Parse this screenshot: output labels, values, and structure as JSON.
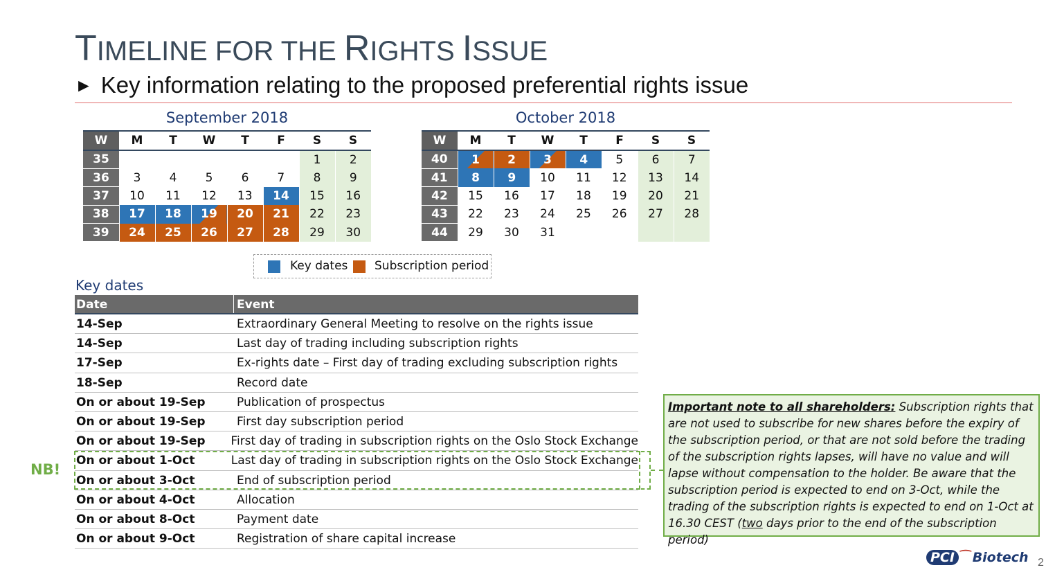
{
  "slide": {
    "title_first_letter_1": "T",
    "title_rest_1": "IMELINE FOR THE ",
    "title_first_letter_2": "R",
    "title_rest_2": "IGHTS ",
    "title_first_letter_3": "I",
    "title_rest_3": "SSUE",
    "subtitle_arrow": "►",
    "subtitle": "Key information relating to the proposed preferential rights issue",
    "page_number": "2"
  },
  "calendars": {
    "headers": [
      "W",
      "M",
      "T",
      "W",
      "T",
      "F",
      "S",
      "S"
    ],
    "september": {
      "title": "September 2018",
      "weeks": [
        {
          "w": "35",
          "days": [
            {
              "d": "",
              "t": ""
            },
            {
              "d": "",
              "t": ""
            },
            {
              "d": "",
              "t": ""
            },
            {
              "d": "",
              "t": ""
            },
            {
              "d": "",
              "t": ""
            },
            {
              "d": "1",
              "t": "we"
            },
            {
              "d": "2",
              "t": "we"
            }
          ]
        },
        {
          "w": "36",
          "days": [
            {
              "d": "3",
              "t": ""
            },
            {
              "d": "4",
              "t": ""
            },
            {
              "d": "5",
              "t": ""
            },
            {
              "d": "6",
              "t": ""
            },
            {
              "d": "7",
              "t": ""
            },
            {
              "d": "8",
              "t": "we"
            },
            {
              "d": "9",
              "t": "we"
            }
          ]
        },
        {
          "w": "37",
          "days": [
            {
              "d": "10",
              "t": ""
            },
            {
              "d": "11",
              "t": ""
            },
            {
              "d": "12",
              "t": ""
            },
            {
              "d": "13",
              "t": ""
            },
            {
              "d": "14",
              "t": "key"
            },
            {
              "d": "15",
              "t": "we"
            },
            {
              "d": "16",
              "t": "we"
            }
          ]
        },
        {
          "w": "38",
          "days": [
            {
              "d": "17",
              "t": "key"
            },
            {
              "d": "18",
              "t": "key"
            },
            {
              "d": "19",
              "t": "mix"
            },
            {
              "d": "20",
              "t": "sub"
            },
            {
              "d": "21",
              "t": "sub"
            },
            {
              "d": "22",
              "t": "we"
            },
            {
              "d": "23",
              "t": "we"
            }
          ]
        },
        {
          "w": "39",
          "days": [
            {
              "d": "24",
              "t": "sub"
            },
            {
              "d": "25",
              "t": "sub"
            },
            {
              "d": "26",
              "t": "sub"
            },
            {
              "d": "27",
              "t": "sub"
            },
            {
              "d": "28",
              "t": "sub"
            },
            {
              "d": "29",
              "t": "we"
            },
            {
              "d": "30",
              "t": "we"
            }
          ]
        }
      ]
    },
    "october": {
      "title": "October 2018",
      "weeks": [
        {
          "w": "40",
          "days": [
            {
              "d": "1",
              "t": "mix"
            },
            {
              "d": "2",
              "t": "sub"
            },
            {
              "d": "3",
              "t": "mix"
            },
            {
              "d": "4",
              "t": "key"
            },
            {
              "d": "5",
              "t": ""
            },
            {
              "d": "6",
              "t": "we"
            },
            {
              "d": "7",
              "t": "we"
            }
          ]
        },
        {
          "w": "41",
          "days": [
            {
              "d": "8",
              "t": "key"
            },
            {
              "d": "9",
              "t": "key"
            },
            {
              "d": "10",
              "t": ""
            },
            {
              "d": "11",
              "t": ""
            },
            {
              "d": "12",
              "t": ""
            },
            {
              "d": "13",
              "t": "we"
            },
            {
              "d": "14",
              "t": "we"
            }
          ]
        },
        {
          "w": "42",
          "days": [
            {
              "d": "15",
              "t": ""
            },
            {
              "d": "16",
              "t": ""
            },
            {
              "d": "17",
              "t": ""
            },
            {
              "d": "18",
              "t": ""
            },
            {
              "d": "19",
              "t": ""
            },
            {
              "d": "20",
              "t": "we"
            },
            {
              "d": "21",
              "t": "we"
            }
          ]
        },
        {
          "w": "43",
          "days": [
            {
              "d": "22",
              "t": ""
            },
            {
              "d": "23",
              "t": ""
            },
            {
              "d": "24",
              "t": ""
            },
            {
              "d": "25",
              "t": ""
            },
            {
              "d": "26",
              "t": ""
            },
            {
              "d": "27",
              "t": "we"
            },
            {
              "d": "28",
              "t": "we"
            }
          ]
        },
        {
          "w": "44",
          "days": [
            {
              "d": "29",
              "t": ""
            },
            {
              "d": "30",
              "t": ""
            },
            {
              "d": "31",
              "t": ""
            },
            {
              "d": "",
              "t": ""
            },
            {
              "d": "",
              "t": ""
            },
            {
              "d": "",
              "t": "we"
            },
            {
              "d": "",
              "t": "we"
            }
          ]
        }
      ]
    }
  },
  "legend": {
    "key_label": "Key dates",
    "sub_label": "Subscription period",
    "key_color": "#2e75b6",
    "sub_color": "#c55a11"
  },
  "key_dates": {
    "title": "Key dates",
    "col_date": "Date",
    "col_event": "Event",
    "rows": [
      {
        "date": "14-Sep",
        "event": "Extraordinary General Meeting to resolve on the rights issue"
      },
      {
        "date": "14-Sep",
        "event": "Last day of trading including subscription rights"
      },
      {
        "date": "17-Sep",
        "event": "Ex-rights date – First day of trading excluding subscription rights"
      },
      {
        "date": "18-Sep",
        "event": "Record date"
      },
      {
        "date": "On or about 19-Sep",
        "event": "Publication of prospectus"
      },
      {
        "date": "On or about 19-Sep",
        "event": "First day subscription period"
      },
      {
        "date": "On or about 19-Sep",
        "event": "First day of trading in subscription rights on the Oslo Stock Exchange"
      },
      {
        "date": "On or about 1-Oct",
        "event": "Last day of trading in subscription rights on the Oslo Stock Exchange"
      },
      {
        "date": "On or about 3-Oct",
        "event": "End of subscription period"
      },
      {
        "date": "On or about 4-Oct",
        "event": "Allocation"
      },
      {
        "date": "On or about 8-Oct",
        "event": "Payment date"
      },
      {
        "date": "On or about 9-Oct",
        "event": "Registration of share capital increase"
      }
    ],
    "nb_label": "NB!"
  },
  "note": {
    "heading": "Important note to all shareholders:",
    "body_1": " Subscription rights that are not used to subscribe for new shares before the expiry of the subscription period, or that are not sold before the trading of the subscription rights lapses, will have no value and will lapse without compensation to the holder. Be aware that the subscription period is expected to end on 3-Oct, while the trading of the subscription rights is expected to end on 1-Oct at 16.30 CEST (",
    "underlined": "two",
    "body_2": " days prior to the end of the subscription period)"
  },
  "logo": {
    "part1": "PCI",
    "part2": "Biotech"
  }
}
